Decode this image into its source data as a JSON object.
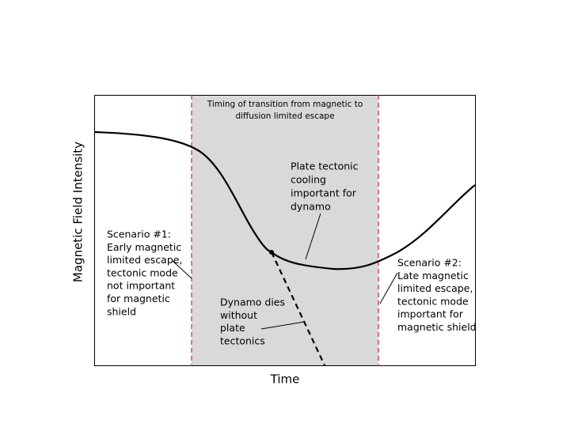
{
  "axes": {
    "x_label": "Time",
    "y_label": "Magnetic Field Intensity"
  },
  "shaded_region": {
    "label": [
      "Timing of transition from magnetic to",
      "diffusion limited escape"
    ]
  },
  "annotations": {
    "plate_tectonic": [
      "Plate tectonic",
      "cooling",
      "important for",
      "dynamo"
    ],
    "scenario_1": [
      "Scenario #1:",
      "Early magnetic",
      "limited escape,",
      "tectonic mode",
      "not important",
      "for magnetic",
      "shield"
    ],
    "scenario_2": [
      "Scenario #2:",
      "Late magnetic",
      "limited escape,",
      "tectonic mode",
      "important for",
      "magnetic shield"
    ],
    "dynamo_dies": [
      "Dynamo dies",
      "without",
      "plate",
      "tectonics"
    ]
  }
}
